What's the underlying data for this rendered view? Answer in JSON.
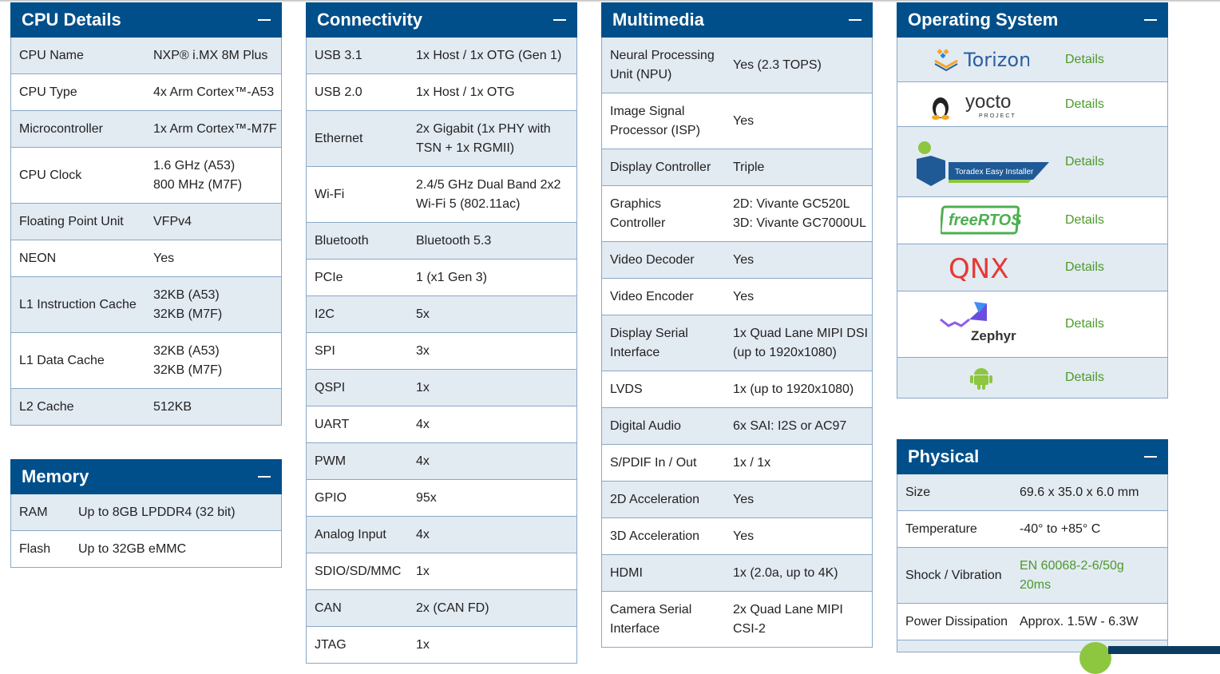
{
  "panels": {
    "cpu": {
      "title": "CPU Details",
      "rows": [
        {
          "label": "CPU Name",
          "value": "NXP® i.MX 8M Plus"
        },
        {
          "label": "CPU Type",
          "value": "4x Arm Cortex™-A53"
        },
        {
          "label": "Microcontroller",
          "value": "1x Arm Cortex™-M7F"
        },
        {
          "label": "CPU Clock",
          "value": "1.6 GHz (A53)\n800 MHz (M7F)"
        },
        {
          "label": "Floating Point Unit",
          "value": "VFPv4"
        },
        {
          "label": "NEON",
          "value": "Yes"
        },
        {
          "label": "L1 Instruction Cache",
          "value": "32KB (A53)\n32KB (M7F)"
        },
        {
          "label": "L1 Data Cache",
          "value": "32KB (A53)\n32KB (M7F)"
        },
        {
          "label": "L2 Cache",
          "value": "512KB"
        }
      ]
    },
    "memory": {
      "title": "Memory",
      "rows": [
        {
          "label": "RAM",
          "value": "Up to 8GB LPDDR4 (32 bit)"
        },
        {
          "label": "Flash",
          "value": "Up to 32GB eMMC"
        }
      ]
    },
    "connectivity": {
      "title": "Connectivity",
      "rows": [
        {
          "label": "USB 3.1",
          "value": "1x Host / 1x OTG (Gen 1)"
        },
        {
          "label": "USB 2.0",
          "value": "1x Host / 1x OTG"
        },
        {
          "label": "Ethernet",
          "value": "2x Gigabit (1x PHY with\nTSN + 1x RGMII)"
        },
        {
          "label": "Wi-Fi",
          "value": "2.4/5 GHz Dual Band 2x2\nWi-Fi 5 (802.11ac)"
        },
        {
          "label": "Bluetooth",
          "value": "Bluetooth 5.3"
        },
        {
          "label": "PCIe",
          "value": "1 (x1 Gen 3)"
        },
        {
          "label": "I2C",
          "value": "5x"
        },
        {
          "label": "SPI",
          "value": "3x"
        },
        {
          "label": "QSPI",
          "value": "1x"
        },
        {
          "label": "UART",
          "value": "4x"
        },
        {
          "label": "PWM",
          "value": "4x"
        },
        {
          "label": "GPIO",
          "value": "95x"
        },
        {
          "label": "Analog Input",
          "value": "4x"
        },
        {
          "label": "SDIO/SD/MMC",
          "value": "1x"
        },
        {
          "label": "CAN",
          "value": "2x (CAN FD)"
        },
        {
          "label": "JTAG",
          "value": "1x"
        }
      ]
    },
    "multimedia": {
      "title": "Multimedia",
      "rows": [
        {
          "label": "Neural Processing\nUnit (NPU)",
          "value": "Yes (2.3 TOPS)"
        },
        {
          "label": "Image Signal\nProcessor (ISP)",
          "value": "Yes"
        },
        {
          "label": "Display Controller",
          "value": "Triple"
        },
        {
          "label": "Graphics\nController",
          "value": "2D: Vivante GC520L\n3D: Vivante GC7000UL"
        },
        {
          "label": "Video Decoder",
          "value": "Yes"
        },
        {
          "label": "Video Encoder",
          "value": "Yes"
        },
        {
          "label": "Display Serial\nInterface",
          "value": "1x Quad Lane MIPI DSI\n(up to 1920x1080)"
        },
        {
          "label": "LVDS",
          "value": "1x (up to 1920x1080)"
        },
        {
          "label": "Digital Audio",
          "value": "6x SAI: I2S or AC97"
        },
        {
          "label": "S/PDIF In / Out",
          "value": "1x / 1x"
        },
        {
          "label": "2D Acceleration",
          "value": "Yes"
        },
        {
          "label": "3D Acceleration",
          "value": "Yes"
        },
        {
          "label": "HDMI",
          "value": "1x (2.0a, up to 4K)"
        },
        {
          "label": "Camera Serial\nInterface",
          "value": "2x Quad Lane MIPI\nCSI-2"
        }
      ]
    },
    "physical": {
      "title": "Physical",
      "rows": [
        {
          "label": "Size",
          "value": "69.6 x 35.0 x 6.0 mm"
        },
        {
          "label": "Temperature",
          "value": "-40° to +85° C"
        },
        {
          "label": "Shock / Vibration",
          "value": "EN 60068-2-6/50g\n20ms",
          "link": true
        },
        {
          "label": "Power Dissipation",
          "value": "Approx. 1.5W - 6.3W"
        },
        {
          "label": "",
          "value": ""
        }
      ]
    }
  },
  "os": {
    "title": "Operating System",
    "details_label": "Details",
    "items": [
      {
        "name": "Torizon",
        "logo": "torizon-logo"
      },
      {
        "name": "yocto",
        "sub": "PROJECT",
        "logo": "yocto-logo"
      },
      {
        "name": "Toradex Easy Installer",
        "logo": "easy-installer-logo"
      },
      {
        "name": "freeRTOS",
        "logo": "freertos-logo"
      },
      {
        "name": "QNX",
        "logo": "qnx-logo"
      },
      {
        "name": "Zephyr",
        "logo": "zephyr-logo"
      },
      {
        "name": "Android",
        "logo": "android-logo"
      }
    ]
  },
  "colors": {
    "header": "#004f8a",
    "row_alt": "#e2eaf2",
    "link": "#4c9a2a"
  }
}
